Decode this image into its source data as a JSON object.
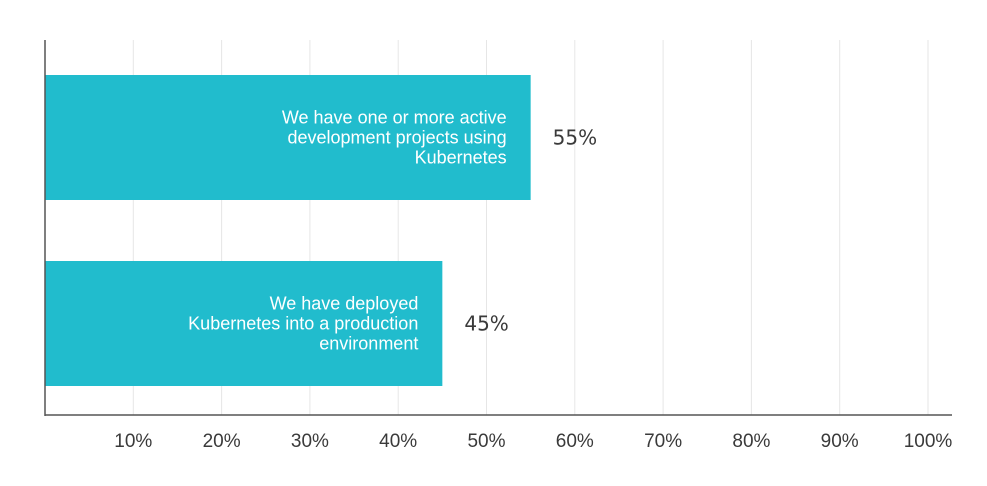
{
  "chart_data": {
    "type": "bar",
    "orientation": "horizontal",
    "categories": [
      [
        "We have one or more active",
        "development projects using",
        "Kubernetes"
      ],
      [
        "We have deployed",
        "Kubernetes into a production",
        "environment"
      ]
    ],
    "values": [
      55,
      45
    ],
    "value_labels": [
      "55%",
      "45%"
    ],
    "x_ticks": [
      10,
      20,
      30,
      40,
      50,
      60,
      70,
      80,
      90,
      100
    ],
    "x_tick_labels": [
      "10%",
      "20%",
      "30%",
      "40%",
      "50%",
      "60%",
      "70%",
      "80%",
      "90%",
      "100%"
    ],
    "xlim": [
      0,
      102
    ],
    "grid": "vertical",
    "legend": "none",
    "title": "",
    "xlabel": "",
    "ylabel": ""
  },
  "colors": {
    "bar": "#21bccd",
    "grid": "#e6e6e6",
    "axis": "#555555",
    "tick_text": "#3a3a3a",
    "value_text": "#3a3a3a",
    "bar_text": "#ffffff"
  }
}
